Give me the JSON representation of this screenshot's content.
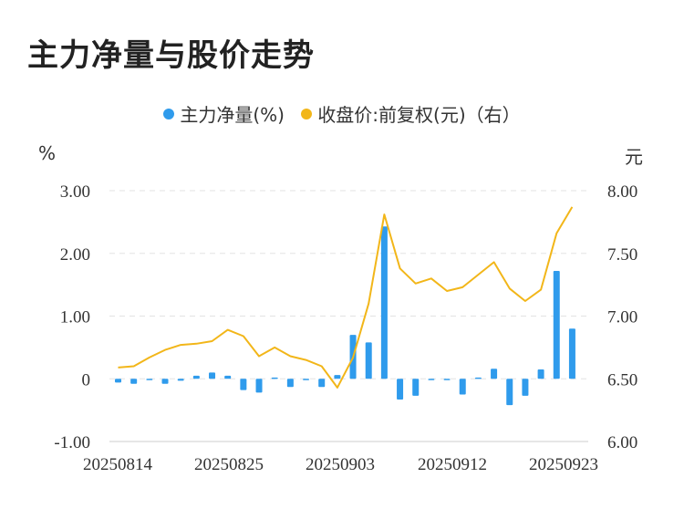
{
  "chart_data": {
    "type": "bar",
    "title": "主力净量与股价走势",
    "legend": [
      {
        "name": "主力净量(%)",
        "color": "#2f9bec"
      },
      {
        "name": "收盘价:前复权(元)（右）",
        "color": "#f2b619"
      }
    ],
    "legend_position": "top-center",
    "y_left_unit": "%",
    "y_right_unit": "元",
    "y_left_ticks": [
      "3.00",
      "2.00",
      "1.00",
      "0",
      "-1.00"
    ],
    "y_right_ticks": [
      "8.00",
      "7.50",
      "7.00",
      "6.50",
      "6.00"
    ],
    "ylim_left": [
      -1.0,
      3.0
    ],
    "ylim_right": [
      6.0,
      8.0
    ],
    "x_tick_labels": [
      "20250814",
      "20250825",
      "20250903",
      "20250912",
      "20250923"
    ],
    "grid": true,
    "series": [
      {
        "name": "主力净量(%)",
        "type": "bar",
        "values": [
          -0.06,
          -0.08,
          0.0,
          -0.08,
          -0.03,
          0.05,
          0.1,
          0.05,
          -0.18,
          -0.22,
          0.02,
          -0.13,
          -0.02,
          -0.13,
          0.06,
          0.7,
          0.58,
          2.43,
          -0.33,
          -0.27,
          -0.02,
          -0.02,
          -0.25,
          0.02,
          0.16,
          -0.42,
          -0.27,
          0.15,
          1.72,
          0.8
        ]
      },
      {
        "name": "收盘价:前复权(元)（右）",
        "type": "line",
        "values": [
          6.59,
          6.6,
          6.67,
          6.73,
          6.77,
          6.78,
          6.8,
          6.89,
          6.84,
          6.68,
          6.75,
          6.68,
          6.65,
          6.6,
          6.43,
          6.67,
          7.1,
          7.81,
          7.38,
          7.26,
          7.3,
          7.2,
          7.23,
          7.33,
          7.43,
          7.22,
          7.12,
          7.21,
          7.66,
          7.87
        ]
      }
    ]
  }
}
